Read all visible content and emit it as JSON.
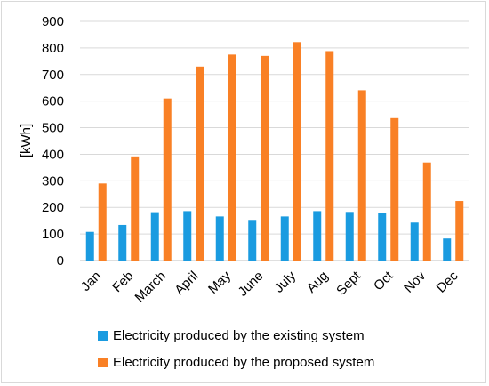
{
  "chart_data": {
    "type": "bar",
    "ylabel": "[kWh]",
    "xlabel": "",
    "ylim": [
      0,
      900
    ],
    "yticks": [
      0,
      100,
      200,
      300,
      400,
      500,
      600,
      700,
      800,
      900
    ],
    "grid": true,
    "legend_position": "bottom",
    "categories": [
      "Jan",
      "Feb",
      "March",
      "April",
      "May",
      "June",
      "July",
      "Aug",
      "Sept",
      "Oct",
      "Nov",
      "Dec"
    ],
    "series": [
      {
        "name": "Electricity produced by the existing system",
        "color": "#1a9be0",
        "values": [
          108,
          134,
          182,
          186,
          166,
          153,
          166,
          186,
          183,
          179,
          143,
          83
        ]
      },
      {
        "name": "Electricity produced by the proposed system",
        "color": "#f98025",
        "values": [
          290,
          392,
          610,
          730,
          775,
          770,
          822,
          788,
          641,
          536,
          369,
          224
        ]
      }
    ]
  }
}
